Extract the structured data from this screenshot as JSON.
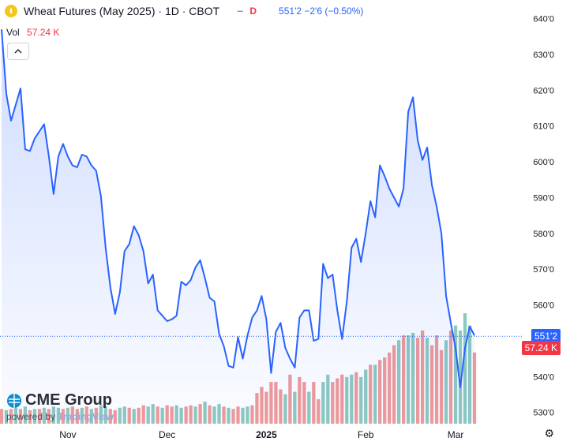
{
  "header": {
    "title": "Wheat Futures (May 2025) · 1D · CBOT",
    "d_badge": "D",
    "quote": "551'2  −2'6 (−0.50%)"
  },
  "volume": {
    "label": "Vol",
    "value": "57.24 K"
  },
  "logo": {
    "name": "CME Group",
    "powered_by": "powered by",
    "tradingview": "TradingView"
  },
  "colors": {
    "line": "#2962ff",
    "area_top": "rgba(41,98,255,0.22)",
    "area_bottom": "rgba(41,98,255,0.02)",
    "vol_up": "#8cc9c1",
    "vol_down": "#ef9a9a",
    "price_tag": "#2962ff",
    "vol_tag": "#f23645"
  },
  "price_tag": "551'2",
  "vol_tag": "57.24 K",
  "chart_data": {
    "type": "line",
    "title": "Wheat Futures (May 2025) · 1D · CBOT",
    "y_tick_labels": [
      "530'0",
      "540'0",
      "550'0",
      "560'0",
      "570'0",
      "580'0",
      "590'0",
      "600'0",
      "610'0",
      "620'0",
      "630'0",
      "640'0"
    ],
    "y_ticks": [
      530,
      540,
      550,
      560,
      570,
      580,
      590,
      600,
      610,
      620,
      630,
      640
    ],
    "ylim": [
      527.5,
      643
    ],
    "x_tick_labels": [
      "Nov",
      "Dec",
      "2025",
      "Feb",
      "Mar"
    ],
    "x_tick_index": [
      14,
      35,
      56,
      77,
      96
    ],
    "x_count": 101,
    "grid": false,
    "current_price": 551.25,
    "series": [
      {
        "values": [
          637,
          619,
          611.5,
          616,
          620.5,
          603.5,
          603,
          606.5,
          608.5,
          610.5,
          601.5,
          591,
          601.5,
          605,
          601.5,
          599,
          598.5,
          602,
          601.5,
          599,
          597.5,
          590.5,
          576,
          565,
          557.5,
          563.5,
          575,
          577,
          582,
          579.5,
          575,
          566,
          568.5,
          558.5,
          557,
          555.5,
          556,
          557,
          566.5,
          565.5,
          567,
          570.5,
          572.5,
          567.5,
          562,
          561,
          552,
          548.5,
          543,
          542.5,
          551,
          545,
          551.5,
          556.5,
          558.5,
          562.5,
          556,
          541,
          552.5,
          555,
          548,
          545,
          542.5,
          556.5,
          558.5,
          558.5,
          550,
          550.5,
          571.5,
          567.5,
          568.5,
          558.5,
          550.5,
          561,
          576,
          578.5,
          572,
          580,
          589,
          584.5,
          599,
          596,
          592.5,
          590,
          587.5,
          592.5,
          614,
          618,
          606,
          600.5,
          604,
          593.5,
          587.5,
          580,
          562.5,
          555,
          548,
          537,
          548,
          554,
          551.5
        ]
      }
    ],
    "volume_values": [
      12,
      11,
      12,
      13,
      12,
      14,
      11,
      12,
      12,
      13,
      12,
      14,
      13,
      12,
      13,
      14,
      12,
      13,
      14,
      12,
      13,
      15,
      14,
      12,
      11,
      13,
      14,
      13,
      12,
      13,
      15,
      14,
      16,
      14,
      13,
      15,
      14,
      15,
      13,
      14,
      15,
      14,
      16,
      18,
      15,
      14,
      16,
      14,
      13,
      12,
      14,
      13,
      14,
      15,
      25,
      30,
      26,
      34,
      34,
      28,
      24,
      40,
      26,
      38,
      34,
      26,
      34,
      20,
      34,
      40,
      34,
      37,
      40,
      38,
      40,
      42,
      38,
      44,
      48,
      48,
      52,
      54,
      58,
      64,
      68,
      72,
      72,
      74,
      70,
      76,
      70,
      64,
      72,
      60,
      68,
      76,
      80,
      76,
      90,
      80,
      58
    ],
    "volume_up": [
      0,
      1,
      0,
      1,
      0,
      1,
      0,
      1,
      0,
      1,
      0,
      1,
      1,
      0,
      1,
      0,
      0,
      1,
      0,
      1,
      0,
      1,
      1,
      0,
      0,
      1,
      1,
      0,
      1,
      0,
      0,
      1,
      1,
      0,
      1,
      0,
      0,
      1,
      1,
      0,
      0,
      1,
      0,
      1,
      0,
      1,
      1,
      0,
      1,
      0,
      0,
      1,
      1,
      0,
      0,
      0,
      0,
      0,
      0,
      0,
      1,
      0,
      1,
      0,
      0,
      1,
      0,
      0,
      1,
      1,
      0,
      0,
      0,
      1,
      1,
      0,
      1,
      1,
      0,
      1,
      0,
      0,
      0,
      0,
      1,
      0,
      1,
      1,
      0,
      0,
      1,
      0,
      0,
      0,
      1,
      0,
      1,
      1,
      1,
      1,
      0
    ]
  }
}
